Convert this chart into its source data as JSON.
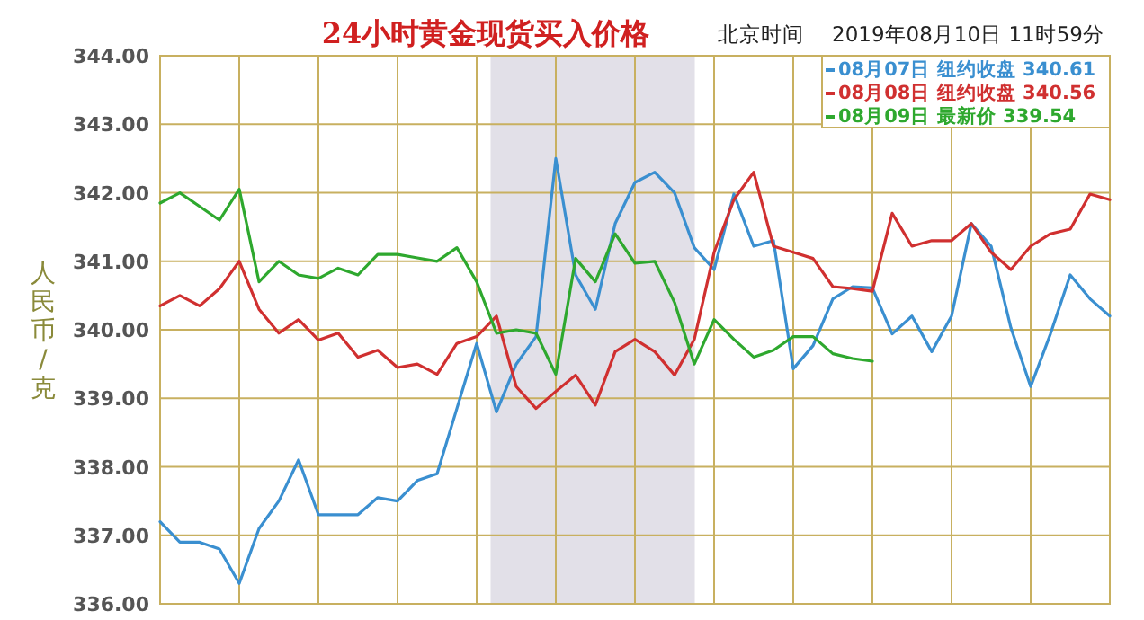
{
  "chart_data": {
    "type": "line",
    "title": "24小时黄金现货买入价格",
    "ylabel": "人民币/克",
    "annotations": [
      "北京时间",
      "2019年08月10日 11时59分"
    ],
    "categories": [
      null,
      null,
      null,
      null,
      null,
      null,
      null,
      null,
      null,
      null,
      null,
      null,
      null,
      null,
      null,
      null,
      null,
      null,
      null,
      null,
      null,
      null,
      null,
      null,
      null,
      null,
      null,
      null,
      null,
      null,
      null,
      null,
      null,
      null,
      null,
      null,
      null,
      null,
      null,
      null,
      null,
      null,
      null,
      null,
      null,
      null,
      null,
      null,
      null
    ],
    "series": [
      {
        "name": "08月07日 纽约收盘 340.61",
        "color": "#3a8fd0",
        "values": [
          337.2,
          336.9,
          336.9,
          336.8,
          336.3,
          337.1,
          337.5,
          338.1,
          337.3,
          337.3,
          337.3,
          337.55,
          337.5,
          337.8,
          337.9,
          338.85,
          339.8,
          338.8,
          339.5,
          339.9,
          342.5,
          340.8,
          340.3,
          341.55,
          342.15,
          342.3,
          342.0,
          341.2,
          340.88,
          341.98,
          341.22,
          341.3,
          339.43,
          339.77,
          340.45,
          340.63,
          340.61,
          339.94,
          340.2,
          339.68,
          340.2,
          341.55,
          341.22,
          340.03,
          339.17,
          339.94,
          340.8,
          340.45,
          340.2
        ]
      },
      {
        "name": "08月08日 纽约收盘 340.56",
        "color": "#d03030",
        "values": [
          340.35,
          340.5,
          340.35,
          340.6,
          341.0,
          340.3,
          339.95,
          340.15,
          339.85,
          339.95,
          339.6,
          339.7,
          339.45,
          339.5,
          339.35,
          339.8,
          339.9,
          340.2,
          339.17,
          338.85,
          339.1,
          339.34,
          338.9,
          339.68,
          339.86,
          339.68,
          339.34,
          339.86,
          341.13,
          341.9,
          342.3,
          341.22,
          341.13,
          341.04,
          340.63,
          340.6,
          340.56,
          341.7,
          341.22,
          341.3,
          341.3,
          341.55,
          341.13,
          340.88,
          341.22,
          341.4,
          341.47,
          341.98,
          341.9
        ]
      },
      {
        "name": "08月09日 最新价 339.54",
        "color": "#2ea82e",
        "values": [
          341.85,
          342.0,
          341.8,
          341.6,
          342.05,
          340.7,
          341.0,
          340.8,
          340.75,
          340.9,
          340.8,
          341.1,
          341.1,
          341.05,
          341.0,
          341.2,
          340.7,
          339.95,
          340.0,
          339.95,
          339.35,
          341.04,
          340.7,
          341.4,
          340.97,
          341.0,
          340.4,
          339.5,
          340.15,
          339.86,
          339.6,
          339.7,
          339.9,
          339.9,
          339.65,
          339.58,
          339.54,
          null,
          null,
          null,
          null,
          null,
          null,
          null,
          null,
          null,
          null,
          null,
          null
        ]
      }
    ],
    "ylim": [
      336,
      344
    ],
    "yticks": [
      {
        "value": 336,
        "label": "336.00"
      },
      {
        "value": 337,
        "label": "337.00"
      },
      {
        "value": 338,
        "label": "338.00"
      },
      {
        "value": 339,
        "label": "339.00"
      },
      {
        "value": 340,
        "label": "340.00"
      },
      {
        "value": 341,
        "label": "341.00"
      },
      {
        "value": 342,
        "label": "342.00"
      },
      {
        "value": 343,
        "label": "343.00"
      },
      {
        "value": 344,
        "label": "344.00"
      }
    ],
    "grid": true,
    "legend": "top right"
  }
}
